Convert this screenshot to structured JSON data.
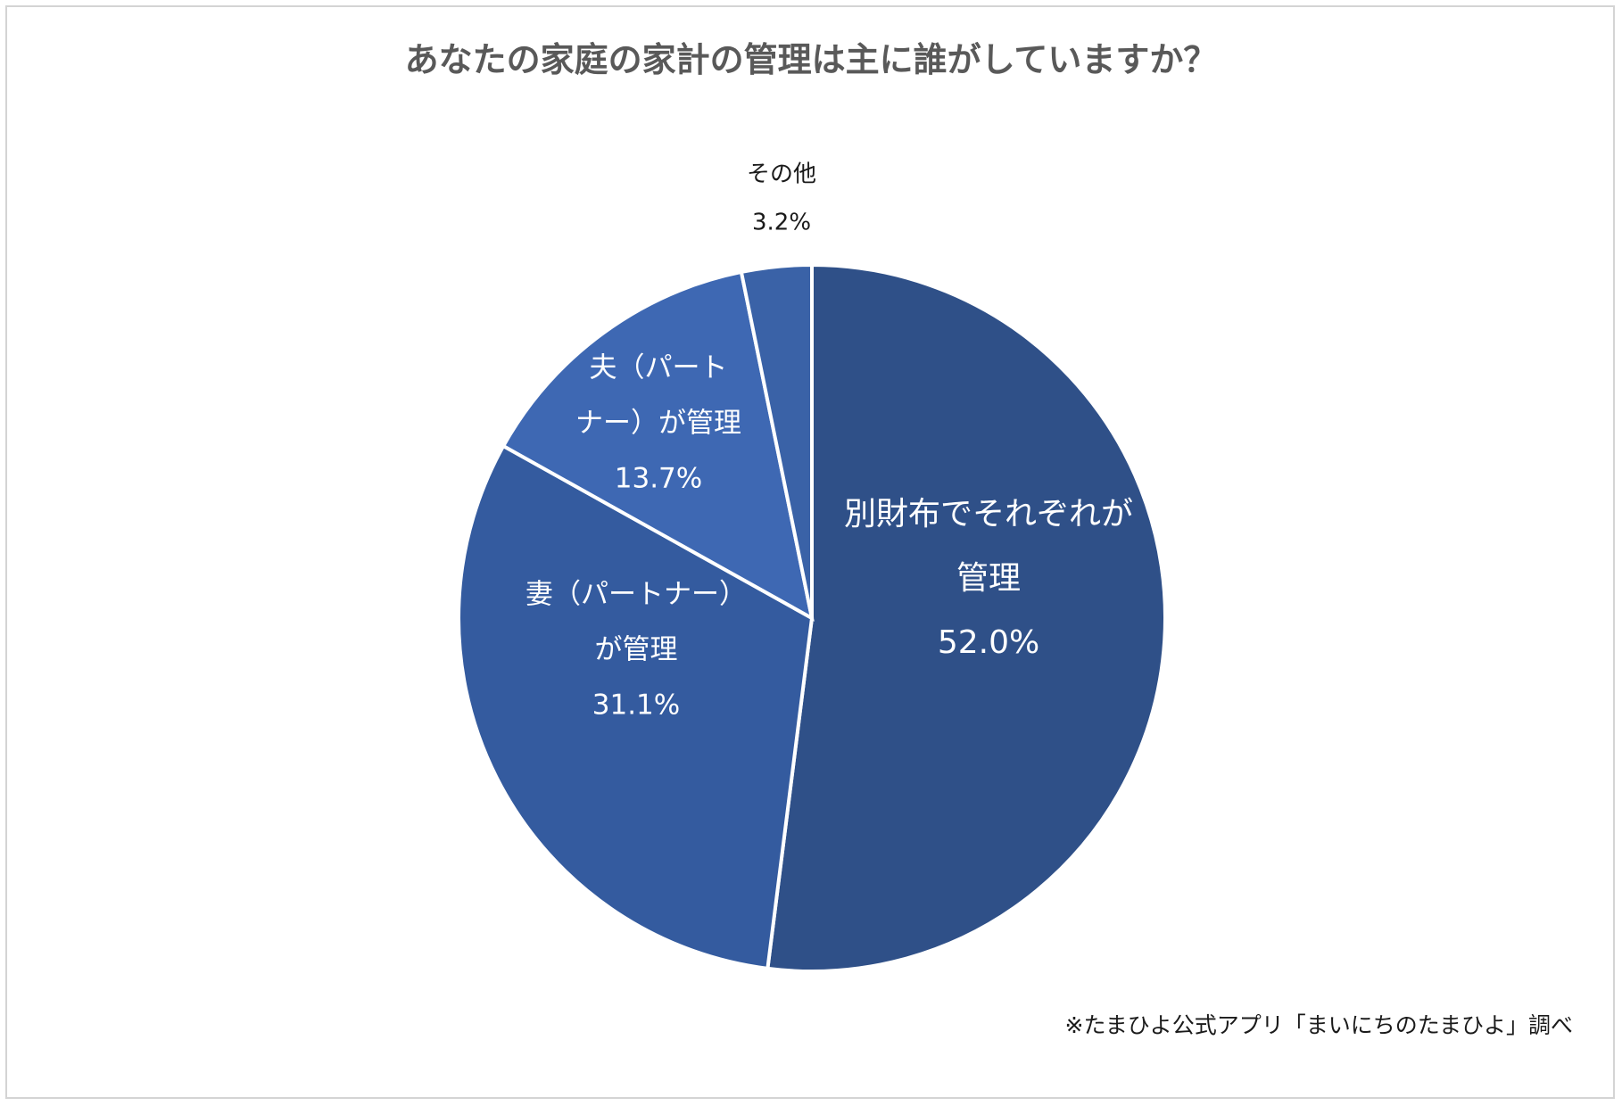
{
  "chart_data": {
    "type": "pie",
    "title": "あなたの家庭の家計の管理は主に誰がしていますか？",
    "slices": [
      {
        "label_lines": [
          "別財布でそれぞれが",
          "管理"
        ],
        "value": 52.0,
        "value_label": "52.0%",
        "color": "#2f5088"
      },
      {
        "label_lines": [
          "妻（パートナー）",
          "が管理"
        ],
        "value": 31.1,
        "value_label": "31.1%",
        "color": "#345b9f"
      },
      {
        "label_lines": [
          "夫（パート",
          "ナー）が管理"
        ],
        "value": 13.7,
        "value_label": "13.7%",
        "color": "#3e68b3"
      },
      {
        "label_lines": [
          "その他"
        ],
        "value": 3.2,
        "value_label": "3.2%",
        "color": "#3a62a7"
      }
    ],
    "start": "12 o'clock",
    "direction": "clockwise",
    "legend": "none"
  },
  "footnote": "※たまひよ公式アプリ「まいにちのたまひよ」調べ"
}
